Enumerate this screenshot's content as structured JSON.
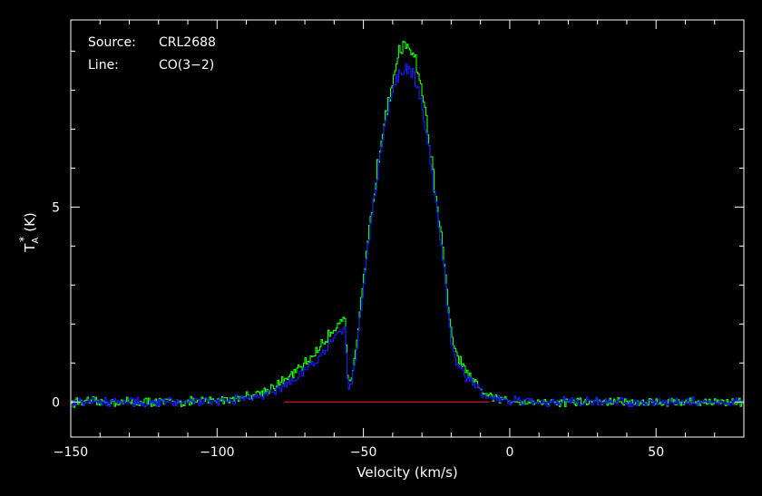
{
  "chart_data": {
    "type": "line",
    "xlabel": "Velocity (km/s)",
    "ylabel": "T",
    "ylabel_sub": "A",
    "ylabel_sup": "*",
    "ylabel_unit": "(K)",
    "xlim": [
      -150,
      80
    ],
    "ylim": [
      -0.9,
      9.8
    ],
    "xticks": [
      -150,
      -100,
      -50,
      0,
      50
    ],
    "yticks": [
      0,
      5
    ],
    "annotations": [
      {
        "key": "Source:",
        "value": "CRL2688"
      },
      {
        "key": "Line:",
        "value": "CO(3−2)"
      }
    ],
    "background": "#000000",
    "frame_color": "#ffffff",
    "grid": false,
    "baseline": {
      "y": 0,
      "x_start": -77,
      "x_end": -7,
      "color": "#ff2020"
    },
    "series": [
      {
        "color": "#10ff10",
        "x": [
          -150,
          -130,
          -110,
          -95,
          -85,
          -78,
          -72,
          -68,
          -64,
          -61,
          -58,
          -56.5,
          -56,
          -55.5,
          -54.5,
          -53,
          -52,
          -51,
          -50,
          -48,
          -46,
          -44,
          -42,
          -40,
          -38,
          -36,
          -35,
          -34,
          -33,
          -32,
          -30,
          -28,
          -26,
          -24,
          -23,
          -22,
          -21,
          -20,
          -19,
          -18,
          -16,
          -14,
          -12,
          -10,
          -8,
          -6,
          -2,
          10,
          30,
          50,
          80
        ],
        "y": [
          0,
          0,
          0,
          0.08,
          0.25,
          0.5,
          0.85,
          1.15,
          1.5,
          1.8,
          2.1,
          2.25,
          1.3,
          0.5,
          0.6,
          1.1,
          1.8,
          2.5,
          3.2,
          4.5,
          5.7,
          6.8,
          7.7,
          8.4,
          8.9,
          9.05,
          9.15,
          9.05,
          8.95,
          8.7,
          7.9,
          6.9,
          5.6,
          4.5,
          3.9,
          3.0,
          2.3,
          1.7,
          1.35,
          1.15,
          0.9,
          0.65,
          0.45,
          0.3,
          0.2,
          0.1,
          0.05,
          0,
          0,
          0,
          0
        ]
      },
      {
        "color": "#1a1aff",
        "x": [
          -150,
          -130,
          -110,
          -95,
          -85,
          -78,
          -72,
          -68,
          -64,
          -61,
          -58,
          -56.5,
          -56,
          -55.5,
          -54.5,
          -53,
          -52,
          -51,
          -50,
          -48,
          -46,
          -44,
          -42,
          -40,
          -38,
          -36,
          -35,
          -34,
          -33,
          -32,
          -30,
          -28,
          -26,
          -24,
          -23,
          -22,
          -21,
          -20,
          -19,
          -18,
          -16,
          -14,
          -12,
          -10,
          -8,
          -6,
          -2,
          10,
          30,
          50,
          80
        ],
        "y": [
          0,
          0,
          0,
          0.05,
          0.18,
          0.38,
          0.65,
          0.95,
          1.25,
          1.55,
          1.85,
          2.0,
          1.1,
          0.45,
          0.5,
          1.0,
          1.7,
          2.4,
          3.1,
          4.4,
          5.5,
          6.6,
          7.4,
          8.0,
          8.4,
          8.5,
          8.55,
          8.5,
          8.4,
          8.2,
          7.5,
          6.6,
          5.4,
          4.3,
          3.7,
          2.8,
          2.1,
          1.5,
          1.2,
          1.0,
          0.75,
          0.55,
          0.38,
          0.25,
          0.15,
          0.08,
          0.03,
          0,
          0,
          0,
          0
        ]
      }
    ]
  }
}
